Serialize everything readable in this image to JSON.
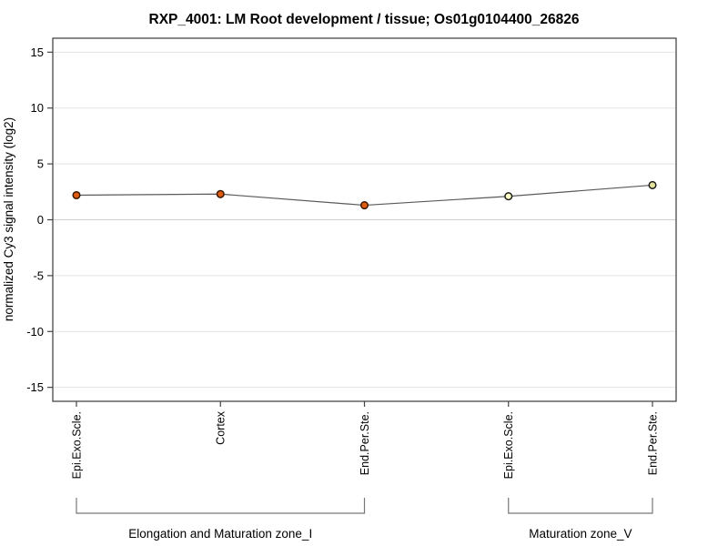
{
  "title": "RXP_4001: LM Root development / tissue; Os01g0104400_26826",
  "chart_data": {
    "type": "line",
    "title": "RXP_4001: LM Root development / tissue; Os01g0104400_26826",
    "xlabel": "",
    "ylabel": "normalized Cy3 signal intensity (log2)",
    "ylim": [
      -16.25,
      16.25
    ],
    "yticks": [
      15,
      10,
      5,
      0,
      -5,
      -10,
      -15
    ],
    "grid": true,
    "legend": "none",
    "categories": [
      "Epi.Exo.Scle.",
      "Cortex",
      "End.Per.Ste.",
      "Epi.Exo.Scle.",
      "End.Per.Ste."
    ],
    "series": [
      {
        "name": "normalized Cy3 signal intensity",
        "values": [
          2.2,
          2.3,
          1.3,
          2.1,
          3.1
        ],
        "errors": [
          0.1,
          0.35,
          0.1,
          0.35,
          0.25
        ]
      }
    ],
    "point_fill_colors": [
      "#e05c10",
      "#e05c10",
      "#e05c10",
      "#ffffc4",
      "#e2e29c"
    ],
    "point_stroke_colors": [
      "#3b1a02",
      "#3b1a02",
      "#3b1a02",
      "#1a1a1a",
      "#1a1a1a"
    ],
    "line_color": "#5a5a5a",
    "error_bar_color": "#111111",
    "grid_color": "#e3e3e3",
    "zero_grid_color": "#cfcfcf",
    "axis_color": "#3a3a3a",
    "tick_color": "#444444",
    "bracket_color": "#777777",
    "groups": [
      {
        "label": "Elongation and Maturation zone_I",
        "start": 0,
        "end": 2
      },
      {
        "label": "Maturation zone_V",
        "start": 3,
        "end": 4
      }
    ]
  }
}
